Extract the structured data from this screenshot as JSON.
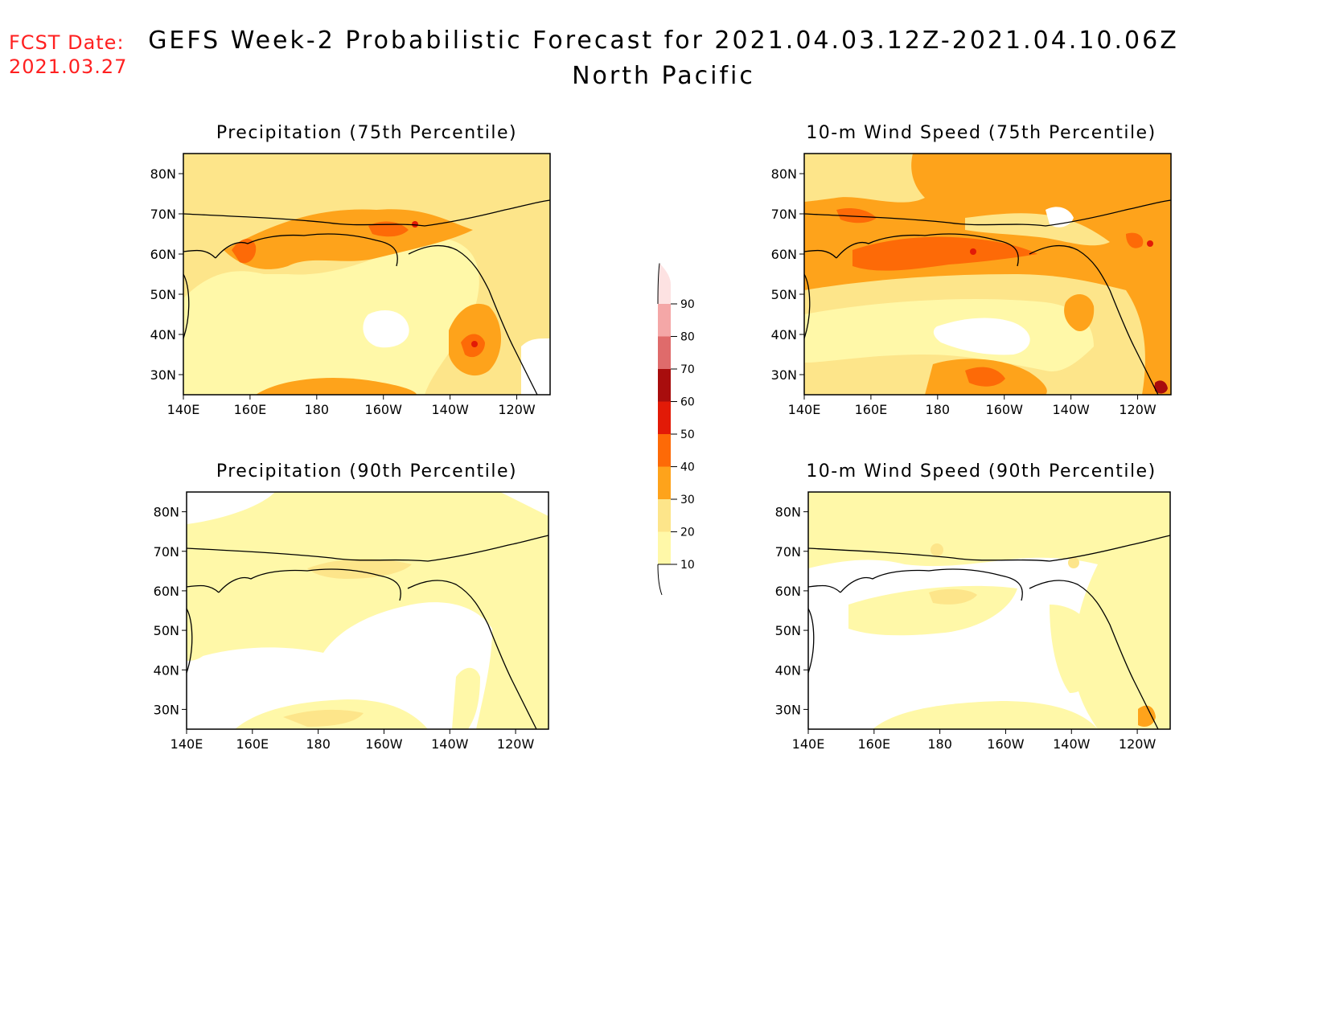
{
  "header": {
    "fcst_label": "FCST Date:",
    "fcst_date": "2021.03.27",
    "title": "GEFS Week-2 Probabilistic Forecast for 2021.04.03.12Z-2021.04.10.06Z",
    "region": "North Pacific"
  },
  "axes": {
    "lat_labels": [
      "80N",
      "70N",
      "60N",
      "50N",
      "40N",
      "30N"
    ],
    "lat_values": [
      80,
      70,
      60,
      50,
      40,
      30
    ],
    "lon_labels": [
      "140E",
      "160E",
      "180",
      "160W",
      "140W",
      "120W"
    ],
    "lon_values": [
      140,
      160,
      180,
      200,
      220,
      240
    ],
    "lon_range": [
      140,
      250
    ],
    "lat_range": [
      25,
      85
    ]
  },
  "colorbar": {
    "levels": [
      "10",
      "20",
      "30",
      "40",
      "50",
      "60",
      "70",
      "80",
      "90"
    ],
    "colors": [
      "#fff8a8",
      "#fde58a",
      "#fea31b",
      "#fd6a07",
      "#e21a07",
      "#a80d0d",
      "#df6b6b",
      "#f4a7a7",
      "#fde2e2"
    ]
  },
  "panels": [
    {
      "title": "Precipitation (75th Percentile)",
      "background": "#fde58a"
    },
    {
      "title": "10-m Wind Speed (75th Percentile)",
      "background": "#fea31b"
    },
    {
      "title": "Precipitation (90th Percentile)",
      "background": "#fff8a8"
    },
    {
      "title": "10-m Wind Speed (90th Percentile)",
      "background": "#fff8a8"
    }
  ]
}
